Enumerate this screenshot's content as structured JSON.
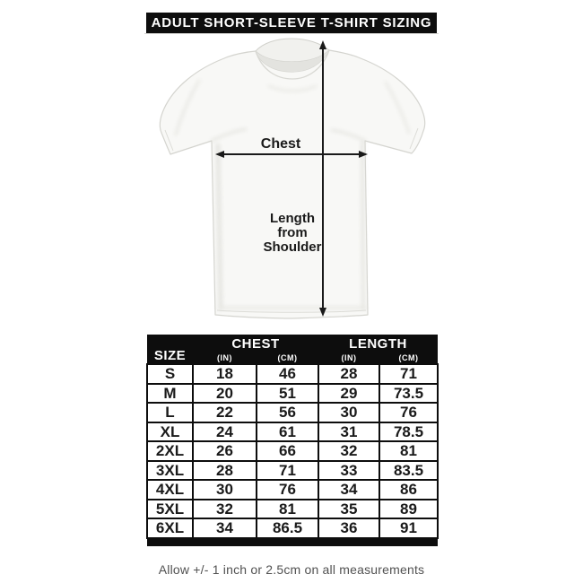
{
  "header": {
    "title": "ADULT SHORT-SLEEVE T-SHIRT SIZING"
  },
  "diagram": {
    "chest_label": "Chest",
    "length_label_line1": "Length",
    "length_label_line2": "from",
    "length_label_line3": "Shoulder"
  },
  "table": {
    "size_header": "SIZE",
    "chest_header": "CHEST",
    "length_header": "LENGTH",
    "chest_unit_in": "(IN)",
    "chest_unit_cm": "(CM)",
    "length_unit_in": "(IN)",
    "length_unit_cm": "(CM)",
    "rows": [
      {
        "size": "S",
        "chest_in": "18",
        "chest_cm": "46",
        "length_in": "28",
        "length_cm": "71"
      },
      {
        "size": "M",
        "chest_in": "20",
        "chest_cm": "51",
        "length_in": "29",
        "length_cm": "73.5"
      },
      {
        "size": "L",
        "chest_in": "22",
        "chest_cm": "56",
        "length_in": "30",
        "length_cm": "76"
      },
      {
        "size": "XL",
        "chest_in": "24",
        "chest_cm": "61",
        "length_in": "31",
        "length_cm": "78.5"
      },
      {
        "size": "2XL",
        "chest_in": "26",
        "chest_cm": "66",
        "length_in": "32",
        "length_cm": "81"
      },
      {
        "size": "3XL",
        "chest_in": "28",
        "chest_cm": "71",
        "length_in": "33",
        "length_cm": "83.5"
      },
      {
        "size": "4XL",
        "chest_in": "30",
        "chest_cm": "76",
        "length_in": "34",
        "length_cm": "86"
      },
      {
        "size": "5XL",
        "chest_in": "32",
        "chest_cm": "81",
        "length_in": "35",
        "length_cm": "89"
      },
      {
        "size": "6XL",
        "chest_in": "34",
        "chest_cm": "86.5",
        "length_in": "36",
        "length_cm": "91"
      }
    ]
  },
  "footer": {
    "note": "Allow +/- 1 inch or 2.5cm on all measurements"
  },
  "colors": {
    "bar_black": "#0d0d0d",
    "text_black": "#1a1a1a",
    "footer_gray": "#515151",
    "shirt_fill": "#f8f8f6",
    "shirt_edge": "#d4d4cf"
  },
  "chart_data": {
    "type": "table",
    "title": "ADULT SHORT-SLEEVE T-SHIRT SIZING",
    "columns": [
      "SIZE",
      "CHEST (IN)",
      "CHEST (CM)",
      "LENGTH (IN)",
      "LENGTH (CM)"
    ],
    "rows": [
      [
        "S",
        18,
        46,
        28,
        71
      ],
      [
        "M",
        20,
        51,
        29,
        73.5
      ],
      [
        "L",
        22,
        56,
        30,
        76
      ],
      [
        "XL",
        24,
        61,
        31,
        78.5
      ],
      [
        "2XL",
        26,
        66,
        32,
        81
      ],
      [
        "3XL",
        28,
        71,
        33,
        83.5
      ],
      [
        "4XL",
        30,
        76,
        34,
        86
      ],
      [
        "5XL",
        32,
        81,
        35,
        89
      ],
      [
        "6XL",
        34,
        86.5,
        36,
        91
      ]
    ],
    "note": "Allow +/- 1 inch or 2.5cm on all measurements",
    "measurement_labels": [
      "Chest",
      "Length from Shoulder"
    ]
  }
}
